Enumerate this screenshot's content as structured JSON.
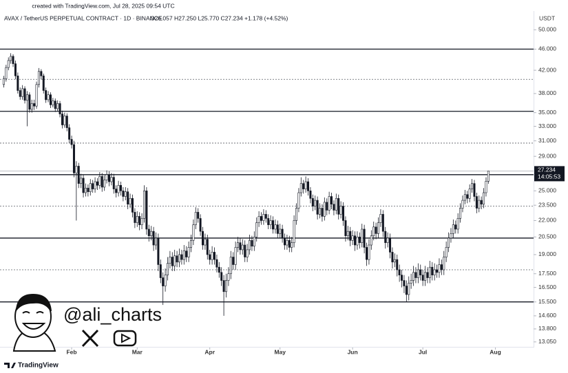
{
  "chart_data": {
    "type": "candlestick",
    "created_note": "created with TradingView.com, Jul 28, 2025 09:54 UTC",
    "symbol_header": "AVAX / TetherUS PERPETUAL CONTRACT · 1D · BINANCE",
    "ohlc_header": "O26.057 H27.250 L25.770 C27.234 +1.178 (+4.52%)",
    "currency": "USDT",
    "watermark": "@ali_charts",
    "brand": "TradingView",
    "log_scale": true,
    "up_color": "#ffffff",
    "down_color": "#131722",
    "edge_color": "#131722",
    "ylim": [
      12.55,
      52
    ],
    "xlim": [
      -1.6,
      226.3
    ],
    "yticks": [
      {
        "value": 50,
        "label": "50.000"
      },
      {
        "value": 46,
        "label": "46.000"
      },
      {
        "value": 42,
        "label": "42.000"
      },
      {
        "value": 38,
        "label": "38.000"
      },
      {
        "value": 35,
        "label": "35.000"
      },
      {
        "value": 33,
        "label": "33.000"
      },
      {
        "value": 31,
        "label": "31.000"
      },
      {
        "value": 29,
        "label": "29.000"
      },
      {
        "value": 25,
        "label": "25.000"
      },
      {
        "value": 23.5,
        "label": "23.500"
      },
      {
        "value": 22,
        "label": "22.000"
      },
      {
        "value": 20.5,
        "label": "20.500"
      },
      {
        "value": 19,
        "label": "19.000"
      },
      {
        "value": 17.5,
        "label": "17.500"
      },
      {
        "value": 16.5,
        "label": "16.500"
      },
      {
        "value": 15.5,
        "label": "15.500"
      },
      {
        "value": 14.6,
        "label": "14.600"
      },
      {
        "value": 13.8,
        "label": "13.800"
      },
      {
        "value": 13.05,
        "label": "13.050"
      }
    ],
    "xticks": [
      {
        "value": 29,
        "label": "Feb"
      },
      {
        "value": 57,
        "label": "Mar"
      },
      {
        "value": 88,
        "label": "Apr"
      },
      {
        "value": 118,
        "label": "May"
      },
      {
        "value": 149,
        "label": "Jun"
      },
      {
        "value": 179,
        "label": "Jul"
      },
      {
        "value": 210,
        "label": "Aug"
      }
    ],
    "last_price": {
      "value": 27.234,
      "label": "27.234"
    },
    "countdown": "14:05:53",
    "levels": [
      {
        "value": 46,
        "style": "solid"
      },
      {
        "value": 40.4,
        "style": "dashed"
      },
      {
        "value": 35.2,
        "style": "solid"
      },
      {
        "value": 30.7,
        "style": "dashed"
      },
      {
        "value": 26.8,
        "style": "solid"
      },
      {
        "value": 23.4,
        "style": "dashed"
      },
      {
        "value": 20.4,
        "style": "solid"
      },
      {
        "value": 17.8,
        "style": "dashed"
      },
      {
        "value": 15.5,
        "style": "solid"
      }
    ],
    "ohlc": [
      [
        39.5,
        41.0,
        39.0,
        40.5
      ],
      [
        40.5,
        43.0,
        40.0,
        42.5
      ],
      [
        42.5,
        44.4,
        42.0,
        43.8
      ],
      [
        43.8,
        45.2,
        43.2,
        44.6
      ],
      [
        44.6,
        45.0,
        42.6,
        43.2
      ],
      [
        43.2,
        43.8,
        40.4,
        41.0
      ],
      [
        41.0,
        41.6,
        38.0,
        38.5
      ],
      [
        38.5,
        39.0,
        37.0,
        37.5
      ],
      [
        37.5,
        39.4,
        37.0,
        38.8
      ],
      [
        38.8,
        39.2,
        36.4,
        36.9
      ],
      [
        36.9,
        38.4,
        33.0,
        37.8
      ],
      [
        37.8,
        38.2,
        35.0,
        35.5
      ],
      [
        35.5,
        37.0,
        35.0,
        36.4
      ],
      [
        36.4,
        37.0,
        35.4,
        36.0
      ],
      [
        36.0,
        40.0,
        35.6,
        39.5
      ],
      [
        39.5,
        42.4,
        39.0,
        41.8
      ],
      [
        41.8,
        42.2,
        40.4,
        41.0
      ],
      [
        41.0,
        41.4,
        38.0,
        38.5
      ],
      [
        38.5,
        39.0,
        36.5,
        37.0
      ],
      [
        37.0,
        38.4,
        36.6,
        37.8
      ],
      [
        37.8,
        38.2,
        35.7,
        36.2
      ],
      [
        36.2,
        37.3,
        35.8,
        36.8
      ],
      [
        36.8,
        37.2,
        35.1,
        35.6
      ],
      [
        35.6,
        36.9,
        35.2,
        36.4
      ],
      [
        36.4,
        36.8,
        34.3,
        34.8
      ],
      [
        34.8,
        35.3,
        32.7,
        33.2
      ],
      [
        33.2,
        35.0,
        32.8,
        34.5
      ],
      [
        34.5,
        34.9,
        32.3,
        32.8
      ],
      [
        32.8,
        33.3,
        30.7,
        31.2
      ],
      [
        31.2,
        31.7,
        30.0,
        30.5
      ],
      [
        30.5,
        31.0,
        26.5,
        27.0
      ],
      [
        27.0,
        28.4,
        22.0,
        27.8
      ],
      [
        27.8,
        28.2,
        25.3,
        25.8
      ],
      [
        25.8,
        26.9,
        25.3,
        26.4
      ],
      [
        26.4,
        26.8,
        24.3,
        24.8
      ],
      [
        24.8,
        25.8,
        24.4,
        25.3
      ],
      [
        25.3,
        25.7,
        24.4,
        24.9
      ],
      [
        24.9,
        26.3,
        24.5,
        25.8
      ],
      [
        25.8,
        26.2,
        24.8,
        25.2
      ],
      [
        25.2,
        26.5,
        24.8,
        26.0
      ],
      [
        26.0,
        26.4,
        25.1,
        25.6
      ],
      [
        25.6,
        27.1,
        25.2,
        26.6
      ],
      [
        26.6,
        27.0,
        24.9,
        25.4
      ],
      [
        25.4,
        26.7,
        25.0,
        26.2
      ],
      [
        26.2,
        27.3,
        25.8,
        26.8
      ],
      [
        26.8,
        27.2,
        25.5,
        26.0
      ],
      [
        26.0,
        27.0,
        25.6,
        26.5
      ],
      [
        26.5,
        26.9,
        24.7,
        25.2
      ],
      [
        25.2,
        25.6,
        24.3,
        24.8
      ],
      [
        24.8,
        26.1,
        24.4,
        25.6
      ],
      [
        25.6,
        26.0,
        24.5,
        25.0
      ],
      [
        25.0,
        25.4,
        23.9,
        24.4
      ],
      [
        24.4,
        25.4,
        24.0,
        24.9
      ],
      [
        24.9,
        25.3,
        23.1,
        23.6
      ],
      [
        23.6,
        24.7,
        23.2,
        24.2
      ],
      [
        24.2,
        24.6,
        22.3,
        22.8
      ],
      [
        22.8,
        23.2,
        21.3,
        21.8
      ],
      [
        21.8,
        22.9,
        21.4,
        22.4
      ],
      [
        22.4,
        22.8,
        21.1,
        21.6
      ],
      [
        21.6,
        22.7,
        21.2,
        22.2
      ],
      [
        22.2,
        25.6,
        21.8,
        25.0
      ],
      [
        25.0,
        25.4,
        20.7,
        21.2
      ],
      [
        21.2,
        21.6,
        20.1,
        20.6
      ],
      [
        20.6,
        21.5,
        20.2,
        21.0
      ],
      [
        21.0,
        21.4,
        19.3,
        19.8
      ],
      [
        19.8,
        20.9,
        19.4,
        20.4
      ],
      [
        20.4,
        20.8,
        17.7,
        18.2
      ],
      [
        18.2,
        18.6,
        16.8,
        17.2
      ],
      [
        17.2,
        17.6,
        15.3,
        16.6
      ],
      [
        16.6,
        17.9,
        16.2,
        17.4
      ],
      [
        17.4,
        18.8,
        17.0,
        18.3
      ],
      [
        18.3,
        19.3,
        17.9,
        18.8
      ],
      [
        18.8,
        19.2,
        17.7,
        18.1
      ],
      [
        18.1,
        19.4,
        17.7,
        18.9
      ],
      [
        18.9,
        19.3,
        18.0,
        18.4
      ],
      [
        18.4,
        19.5,
        18.0,
        19.0
      ],
      [
        19.0,
        19.4,
        18.2,
        18.6
      ],
      [
        18.6,
        19.8,
        18.2,
        19.3
      ],
      [
        19.3,
        19.7,
        18.4,
        18.8
      ],
      [
        18.8,
        20.1,
        18.4,
        19.6
      ],
      [
        19.6,
        20.7,
        19.2,
        20.2
      ],
      [
        20.2,
        22.1,
        19.8,
        21.6
      ],
      [
        21.6,
        23.3,
        21.2,
        22.8
      ],
      [
        22.8,
        23.2,
        21.8,
        22.2
      ],
      [
        22.2,
        22.6,
        20.6,
        21.0
      ],
      [
        21.0,
        21.4,
        19.4,
        19.8
      ],
      [
        19.8,
        20.8,
        19.4,
        20.3
      ],
      [
        20.3,
        20.7,
        18.6,
        19.0
      ],
      [
        19.0,
        19.4,
        18.2,
        18.6
      ],
      [
        18.6,
        19.7,
        18.2,
        19.2
      ],
      [
        19.2,
        19.6,
        18.2,
        18.6
      ],
      [
        18.6,
        19.0,
        17.6,
        18.0
      ],
      [
        18.0,
        18.4,
        17.2,
        17.6
      ],
      [
        17.6,
        18.0,
        16.6,
        17.0
      ],
      [
        17.0,
        17.4,
        14.6,
        16.2
      ],
      [
        16.2,
        17.5,
        15.8,
        17.0
      ],
      [
        17.0,
        18.0,
        16.6,
        17.5
      ],
      [
        17.5,
        19.3,
        17.1,
        18.8
      ],
      [
        18.8,
        19.2,
        17.8,
        18.2
      ],
      [
        18.2,
        20.1,
        17.8,
        19.6
      ],
      [
        19.6,
        20.5,
        19.2,
        20.0
      ],
      [
        20.0,
        20.4,
        19.0,
        19.4
      ],
      [
        19.4,
        20.3,
        19.0,
        19.8
      ],
      [
        19.8,
        20.2,
        18.4,
        18.8
      ],
      [
        18.8,
        19.9,
        18.4,
        19.4
      ],
      [
        19.4,
        20.7,
        19.0,
        20.2
      ],
      [
        20.2,
        20.6,
        19.3,
        19.7
      ],
      [
        19.7,
        21.0,
        19.3,
        20.5
      ],
      [
        20.5,
        22.3,
        20.1,
        21.8
      ],
      [
        21.8,
        22.9,
        21.4,
        22.4
      ],
      [
        22.4,
        22.8,
        21.6,
        22.0
      ],
      [
        22.0,
        23.1,
        21.6,
        22.6
      ],
      [
        22.6,
        23.0,
        21.8,
        22.2
      ],
      [
        22.2,
        22.6,
        21.2,
        21.6
      ],
      [
        21.6,
        22.5,
        21.2,
        22.0
      ],
      [
        22.0,
        22.4,
        20.8,
        21.2
      ],
      [
        21.2,
        22.1,
        20.8,
        21.6
      ],
      [
        21.6,
        22.0,
        20.4,
        20.8
      ],
      [
        20.8,
        21.7,
        20.4,
        21.2
      ],
      [
        21.2,
        21.6,
        20.0,
        20.4
      ],
      [
        20.4,
        20.8,
        19.4,
        19.8
      ],
      [
        19.8,
        20.7,
        19.4,
        20.2
      ],
      [
        20.2,
        20.6,
        19.2,
        19.6
      ],
      [
        19.6,
        20.5,
        19.2,
        20.0
      ],
      [
        20.0,
        22.5,
        19.6,
        22.0
      ],
      [
        22.0,
        23.7,
        21.6,
        23.2
      ],
      [
        23.2,
        25.3,
        22.8,
        24.8
      ],
      [
        24.8,
        26.5,
        24.4,
        25.8
      ],
      [
        25.8,
        26.2,
        24.7,
        25.2
      ],
      [
        25.2,
        26.6,
        24.8,
        26.0
      ],
      [
        26.0,
        26.4,
        24.5,
        25.0
      ],
      [
        25.0,
        25.4,
        23.7,
        24.2
      ],
      [
        24.2,
        24.6,
        22.9,
        23.4
      ],
      [
        23.4,
        24.5,
        23.0,
        24.0
      ],
      [
        24.0,
        24.4,
        22.1,
        22.6
      ],
      [
        22.6,
        23.7,
        22.2,
        23.2
      ],
      [
        23.2,
        23.6,
        21.9,
        22.4
      ],
      [
        22.4,
        24.3,
        22.0,
        23.8
      ],
      [
        23.8,
        24.2,
        22.5,
        23.0
      ],
      [
        23.0,
        24.9,
        22.6,
        24.4
      ],
      [
        24.4,
        24.8,
        23.1,
        23.6
      ],
      [
        23.6,
        24.0,
        22.5,
        23.0
      ],
      [
        23.0,
        24.7,
        22.6,
        24.2
      ],
      [
        24.2,
        24.6,
        22.1,
        22.6
      ],
      [
        22.6,
        23.9,
        22.2,
        23.4
      ],
      [
        23.4,
        23.8,
        21.5,
        22.0
      ],
      [
        22.0,
        22.4,
        20.1,
        20.6
      ],
      [
        20.6,
        21.5,
        20.2,
        21.0
      ],
      [
        21.0,
        21.4,
        19.7,
        20.2
      ],
      [
        20.2,
        21.1,
        19.8,
        20.6
      ],
      [
        20.6,
        21.0,
        19.3,
        19.8
      ],
      [
        19.8,
        21.0,
        19.4,
        20.5
      ],
      [
        20.5,
        20.9,
        19.5,
        20.0
      ],
      [
        20.0,
        21.7,
        19.6,
        21.2
      ],
      [
        21.2,
        21.6,
        19.1,
        19.6
      ],
      [
        19.6,
        20.0,
        18.1,
        18.6
      ],
      [
        18.6,
        20.3,
        18.2,
        19.8
      ],
      [
        19.8,
        21.1,
        19.4,
        20.6
      ],
      [
        20.6,
        21.9,
        20.2,
        21.4
      ],
      [
        21.4,
        21.8,
        20.3,
        20.8
      ],
      [
        20.8,
        22.3,
        20.4,
        21.8
      ],
      [
        21.8,
        23.1,
        21.4,
        22.6
      ],
      [
        22.6,
        23.0,
        20.5,
        21.0
      ],
      [
        21.0,
        21.4,
        19.5,
        20.0
      ],
      [
        20.0,
        20.9,
        19.6,
        20.4
      ],
      [
        20.4,
        20.8,
        18.7,
        19.2
      ],
      [
        19.2,
        19.6,
        17.9,
        18.4
      ],
      [
        18.4,
        19.1,
        18.0,
        18.6
      ],
      [
        18.6,
        19.0,
        17.3,
        17.8
      ],
      [
        17.8,
        18.2,
        16.9,
        17.4
      ],
      [
        17.4,
        17.8,
        16.5,
        17.0
      ],
      [
        17.0,
        17.4,
        16.1,
        16.6
      ],
      [
        16.6,
        17.0,
        15.5,
        16.0
      ],
      [
        16.0,
        17.3,
        15.6,
        16.8
      ],
      [
        16.8,
        17.5,
        16.4,
        17.0
      ],
      [
        17.0,
        18.1,
        16.6,
        17.6
      ],
      [
        17.6,
        18.0,
        16.8,
        17.2
      ],
      [
        17.2,
        18.3,
        16.8,
        17.8
      ],
      [
        17.8,
        18.2,
        17.0,
        17.4
      ],
      [
        17.4,
        17.8,
        16.6,
        17.0
      ],
      [
        17.0,
        18.1,
        16.6,
        17.6
      ],
      [
        17.6,
        18.0,
        16.8,
        17.2
      ],
      [
        17.2,
        18.5,
        16.8,
        18.0
      ],
      [
        18.0,
        18.4,
        17.0,
        17.4
      ],
      [
        17.4,
        18.3,
        17.0,
        17.8
      ],
      [
        17.8,
        18.2,
        17.2,
        17.6
      ],
      [
        17.6,
        18.7,
        17.2,
        18.2
      ],
      [
        18.2,
        18.6,
        17.4,
        17.8
      ],
      [
        17.8,
        19.3,
        17.4,
        18.8
      ],
      [
        18.8,
        20.1,
        18.4,
        19.6
      ],
      [
        19.6,
        20.9,
        19.2,
        20.4
      ],
      [
        20.4,
        21.3,
        20.0,
        20.8
      ],
      [
        20.8,
        22.1,
        20.4,
        21.6
      ],
      [
        21.6,
        22.0,
        20.8,
        21.2
      ],
      [
        21.2,
        22.7,
        20.8,
        22.2
      ],
      [
        22.2,
        23.7,
        21.8,
        23.2
      ],
      [
        23.2,
        24.5,
        22.8,
        24.0
      ],
      [
        24.0,
        25.1,
        23.6,
        24.6
      ],
      [
        24.6,
        25.0,
        23.7,
        24.2
      ],
      [
        24.2,
        25.7,
        23.8,
        25.2
      ],
      [
        25.2,
        26.3,
        24.8,
        25.8
      ],
      [
        25.8,
        26.2,
        23.9,
        24.4
      ],
      [
        24.4,
        24.8,
        22.7,
        23.2
      ],
      [
        23.2,
        24.5,
        22.8,
        24.0
      ],
      [
        24.0,
        24.4,
        23.1,
        23.6
      ],
      [
        23.6,
        25.3,
        23.2,
        24.8
      ],
      [
        24.8,
        26.5,
        24.4,
        26.057
      ],
      [
        26.057,
        27.25,
        25.77,
        27.234
      ]
    ]
  }
}
